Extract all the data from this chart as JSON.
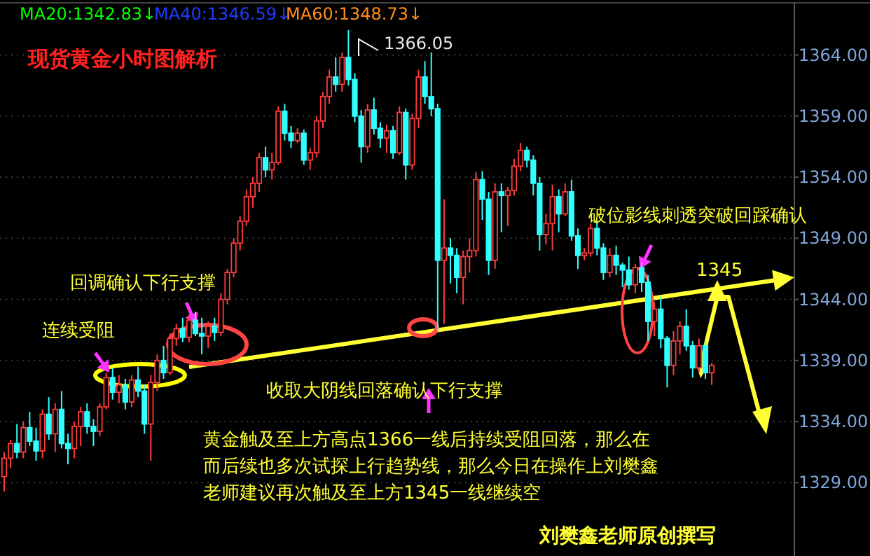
{
  "chart_data": {
    "type": "candlestick",
    "title": "现货黄金小时图解析",
    "categories": [
      null,
      null,
      null,
      null,
      null,
      null,
      null,
      null,
      null,
      null,
      null,
      null,
      null,
      null,
      null,
      null,
      null,
      null,
      null,
      null,
      null,
      null,
      null,
      null,
      null,
      null,
      null,
      null,
      null,
      null,
      null,
      null,
      null,
      null,
      null,
      null,
      null,
      null,
      null,
      null,
      null,
      null,
      null,
      null,
      null,
      null,
      null,
      null,
      null,
      null,
      null,
      null,
      null,
      null,
      null,
      null,
      null,
      null,
      null,
      null,
      null,
      null,
      null,
      null,
      null,
      null,
      null,
      null,
      null,
      null,
      null,
      null,
      null,
      null,
      null,
      null,
      null,
      null,
      null,
      null,
      null,
      null,
      null,
      null,
      null,
      null,
      null,
      null,
      null,
      null,
      null,
      null,
      null,
      null,
      null,
      null,
      null,
      null,
      null,
      null,
      null,
      null,
      null,
      null,
      null,
      null,
      null,
      null,
      null,
      null,
      null,
      null
    ],
    "ohlc": [
      [
        1329.5,
        1331.5,
        1328.3,
        1331.0
      ],
      [
        1331.0,
        1332.5,
        1330.2,
        1332.2
      ],
      [
        1332.2,
        1333.8,
        1331.0,
        1331.5
      ],
      [
        1331.5,
        1334.0,
        1331.0,
        1333.5
      ],
      [
        1333.5,
        1334.8,
        1332.0,
        1332.4
      ],
      [
        1332.4,
        1333.5,
        1330.8,
        1331.6
      ],
      [
        1331.6,
        1335.0,
        1331.0,
        1334.6
      ],
      [
        1334.6,
        1336.0,
        1332.5,
        1333.0
      ],
      [
        1333.0,
        1335.5,
        1331.5,
        1335.0
      ],
      [
        1335.0,
        1336.5,
        1331.8,
        1332.2
      ],
      [
        1332.2,
        1333.0,
        1330.5,
        1331.8
      ],
      [
        1331.8,
        1334.0,
        1331.0,
        1333.6
      ],
      [
        1333.6,
        1335.2,
        1332.0,
        1334.8
      ],
      [
        1334.8,
        1335.5,
        1333.0,
        1333.6
      ],
      [
        1333.6,
        1334.2,
        1332.0,
        1333.2
      ],
      [
        1333.2,
        1335.5,
        1332.8,
        1335.2
      ],
      [
        1335.2,
        1338.0,
        1335.0,
        1337.6
      ],
      [
        1337.6,
        1338.4,
        1335.8,
        1336.4
      ],
      [
        1336.4,
        1337.8,
        1335.5,
        1337.0
      ],
      [
        1337.0,
        1337.5,
        1335.0,
        1335.6
      ],
      [
        1335.6,
        1337.8,
        1335.2,
        1337.4
      ],
      [
        1337.4,
        1338.5,
        1336.0,
        1336.5
      ],
      [
        1336.5,
        1337.0,
        1333.0,
        1333.8
      ],
      [
        1333.8,
        1337.8,
        1330.8,
        1337.2
      ],
      [
        1337.2,
        1339.5,
        1336.5,
        1339.0
      ],
      [
        1339.0,
        1340.2,
        1337.5,
        1338.0
      ],
      [
        1338.0,
        1341.2,
        1337.8,
        1340.8
      ],
      [
        1340.8,
        1342.0,
        1340.2,
        1341.6
      ],
      [
        1341.6,
        1342.5,
        1340.5,
        1340.9
      ],
      [
        1340.9,
        1342.8,
        1340.5,
        1342.3
      ],
      [
        1342.3,
        1343.0,
        1341.0,
        1341.2
      ],
      [
        1341.2,
        1342.5,
        1339.5,
        1341.0
      ],
      [
        1341.0,
        1342.2,
        1340.0,
        1341.8
      ],
      [
        1341.8,
        1342.5,
        1340.6,
        1341.3
      ],
      [
        1341.3,
        1344.5,
        1341.0,
        1344.0
      ],
      [
        1344.0,
        1346.5,
        1343.6,
        1346.2
      ],
      [
        1346.2,
        1349.0,
        1345.8,
        1348.6
      ],
      [
        1348.6,
        1350.8,
        1348.0,
        1350.4
      ],
      [
        1350.4,
        1353.0,
        1350.0,
        1352.4
      ],
      [
        1352.4,
        1354.0,
        1351.5,
        1353.5
      ],
      [
        1353.5,
        1356.0,
        1352.8,
        1355.6
      ],
      [
        1355.6,
        1356.5,
        1354.0,
        1354.6
      ],
      [
        1354.6,
        1356.0,
        1353.8,
        1355.2
      ],
      [
        1355.2,
        1359.8,
        1355.0,
        1359.4
      ],
      [
        1359.4,
        1360.0,
        1357.0,
        1357.6
      ],
      [
        1357.6,
        1358.2,
        1356.4,
        1357.0
      ],
      [
        1357.0,
        1358.0,
        1356.8,
        1357.6
      ],
      [
        1357.6,
        1357.9,
        1355.0,
        1355.4
      ],
      [
        1355.4,
        1356.4,
        1354.6,
        1356.0
      ],
      [
        1356.0,
        1359.0,
        1355.6,
        1358.6
      ],
      [
        1358.6,
        1361.0,
        1358.0,
        1360.6
      ],
      [
        1360.6,
        1362.8,
        1360.0,
        1362.2
      ],
      [
        1362.2,
        1363.8,
        1361.0,
        1361.6
      ],
      [
        1361.6,
        1364.2,
        1361.0,
        1363.8
      ],
      [
        1363.8,
        1366.05,
        1361.5,
        1362.0
      ],
      [
        1362.0,
        1362.5,
        1358.5,
        1359.0
      ],
      [
        1359.0,
        1359.5,
        1355.2,
        1356.5
      ],
      [
        1356.5,
        1360.0,
        1356.0,
        1359.5
      ],
      [
        1359.5,
        1360.5,
        1357.5,
        1358.0
      ],
      [
        1358.0,
        1358.5,
        1356.4,
        1357.2
      ],
      [
        1357.2,
        1358.3,
        1356.0,
        1357.8
      ],
      [
        1357.8,
        1358.2,
        1355.5,
        1356.0
      ],
      [
        1356.0,
        1359.8,
        1355.8,
        1359.3
      ],
      [
        1359.3,
        1359.6,
        1353.8,
        1355.0
      ],
      [
        1355.0,
        1359.2,
        1354.6,
        1358.8
      ],
      [
        1358.8,
        1362.8,
        1358.0,
        1362.2
      ],
      [
        1362.2,
        1363.5,
        1360.0,
        1360.6
      ],
      [
        1360.6,
        1364.2,
        1359.0,
        1359.6
      ],
      [
        1359.6,
        1360.0,
        1341.4,
        1347.2
      ],
      [
        1347.2,
        1352.2,
        1342.0,
        1348.2
      ],
      [
        1348.2,
        1349.0,
        1345.3,
        1347.6
      ],
      [
        1347.6,
        1348.2,
        1344.5,
        1345.8
      ],
      [
        1345.8,
        1348.0,
        1343.6,
        1347.5
      ],
      [
        1347.5,
        1349.0,
        1346.2,
        1348.0
      ],
      [
        1348.0,
        1354.4,
        1347.5,
        1353.8
      ],
      [
        1353.8,
        1354.5,
        1350.5,
        1352.2
      ],
      [
        1352.2,
        1352.8,
        1346.0,
        1347.2
      ],
      [
        1347.2,
        1353.5,
        1346.5,
        1352.8
      ],
      [
        1352.8,
        1353.5,
        1349.5,
        1352.5
      ],
      [
        1352.5,
        1353.2,
        1350.0,
        1352.9
      ],
      [
        1352.9,
        1355.5,
        1352.5,
        1354.9
      ],
      [
        1354.9,
        1356.8,
        1354.5,
        1356.2
      ],
      [
        1356.2,
        1356.5,
        1354.8,
        1355.4
      ],
      [
        1355.4,
        1355.8,
        1352.5,
        1353.5
      ],
      [
        1353.5,
        1354.0,
        1348.0,
        1349.3
      ],
      [
        1349.3,
        1351.0,
        1348.5,
        1350.2
      ],
      [
        1350.2,
        1353.4,
        1348.0,
        1352.4
      ],
      [
        1352.4,
        1353.0,
        1349.5,
        1351.0
      ],
      [
        1351.0,
        1353.5,
        1350.8,
        1352.8
      ],
      [
        1352.8,
        1353.8,
        1348.8,
        1349.2
      ],
      [
        1349.2,
        1349.8,
        1346.5,
        1347.6
      ],
      [
        1347.6,
        1348.2,
        1347.2,
        1347.8
      ],
      [
        1347.8,
        1350.2,
        1347.5,
        1349.8
      ],
      [
        1349.8,
        1350.5,
        1347.6,
        1348.2
      ],
      [
        1348.2,
        1348.6,
        1345.6,
        1346.2
      ],
      [
        1346.2,
        1348.2,
        1345.8,
        1347.6
      ],
      [
        1347.6,
        1348.4,
        1346.0,
        1346.8
      ],
      [
        1346.8,
        1347.0,
        1345.0,
        1346.4
      ],
      [
        1346.4,
        1347.5,
        1344.8,
        1345.2
      ],
      [
        1345.2,
        1346.9,
        1344.5,
        1346.6
      ],
      [
        1346.6,
        1347.0,
        1344.6,
        1345.4
      ],
      [
        1345.4,
        1346.0,
        1340.6,
        1342.2
      ],
      [
        1342.2,
        1343.8,
        1341.0,
        1343.2
      ],
      [
        1343.2,
        1344.2,
        1340.0,
        1340.8
      ],
      [
        1340.8,
        1341.0,
        1336.8,
        1338.6
      ],
      [
        1338.6,
        1341.4,
        1337.8,
        1340.6
      ],
      [
        1340.6,
        1342.2,
        1339.5,
        1341.8
      ],
      [
        1341.8,
        1343.2,
        1339.8,
        1340.2
      ],
      [
        1340.2,
        1340.6,
        1337.6,
        1338.4
      ],
      [
        1338.4,
        1340.8,
        1338.0,
        1340.2
      ],
      [
        1340.2,
        1340.6,
        1337.5,
        1338.0
      ],
      [
        1338.0,
        1338.8,
        1337.0,
        1338.6
      ]
    ],
    "ylim": [
      1323,
      1368.5
    ],
    "yticks": [
      {
        "value": 1329,
        "label": "1329.00"
      },
      {
        "value": 1334,
        "label": "1334.00"
      },
      {
        "value": 1339,
        "label": "1339.00"
      },
      {
        "value": 1344,
        "label": "1344.00"
      },
      {
        "value": 1349,
        "label": "1349.00"
      },
      {
        "value": 1354,
        "label": "1354.00"
      },
      {
        "value": 1359,
        "label": "1359.00"
      },
      {
        "value": 1364,
        "label": "1364.00"
      }
    ],
    "grid": "y",
    "tick_labels": "y",
    "annotations": [
      "MA20:1342.83↓",
      "MA40:1346.59↓",
      "MA60:1348.73↓",
      "1366.05",
      "连续受阻",
      "回调确认下行支撑",
      "收取大阴线回落确认下行支撑",
      "破位影线刺透突破回踩确认",
      "1345",
      "黄金触及至上方高点1366一线后持续受阻回落，那么在而后续也多次试探上行趋势线，那么今日在操作上刘樊鑫老师建议再次触及至上方1345一线继续空",
      "刘樊鑫老师原创撰写"
    ]
  }
}
